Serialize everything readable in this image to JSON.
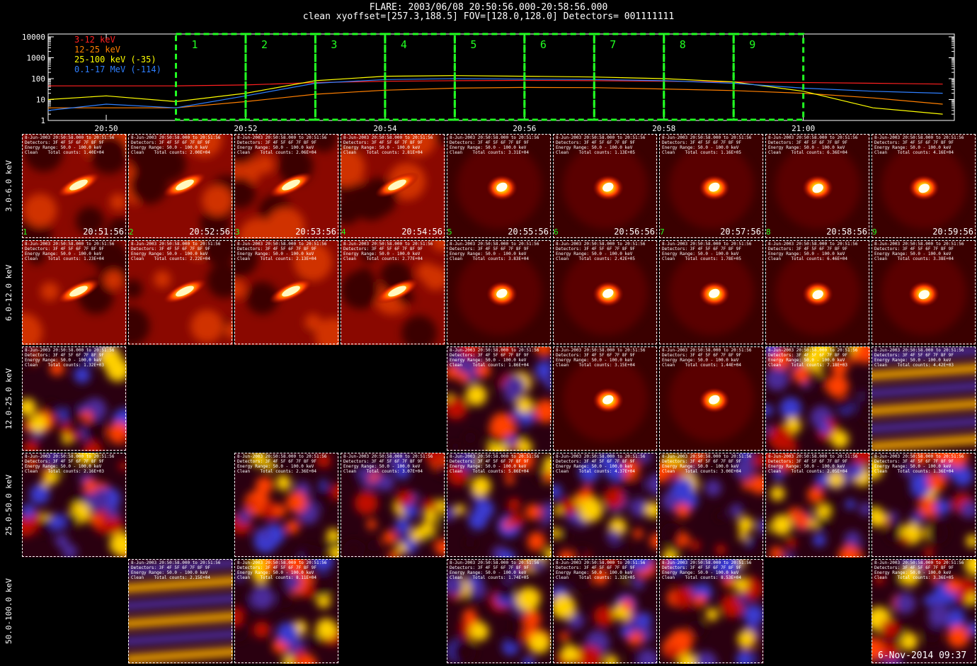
{
  "header": {
    "line1": "FLARE: 2003/06/08 20:50:56.000-20:58:56.000",
    "line2": "clean    xyoffset=[257.3,188.5]    FOV=[128.0,128.0]    Detectors= 001111111"
  },
  "chart_data": {
    "type": "line",
    "yscale": "log",
    "ylim": [
      1,
      10000
    ],
    "yticks": [
      "10000",
      "1000",
      "100",
      "10",
      "1"
    ],
    "xticks": [
      "20:50",
      "20:52",
      "20:54",
      "20:56",
      "20:58",
      "21:00"
    ],
    "legend": [
      {
        "name": "3-12 keV",
        "color": "#ff2020"
      },
      {
        "name": "12-25 keV",
        "color": "#ff7f00"
      },
      {
        "name": "25-100 keV (-35)",
        "color": "#ffff00"
      },
      {
        "name": "0.1-17 MeV (-114)",
        "color": "#2f7fff"
      }
    ],
    "series": [
      {
        "name": "3-12 keV",
        "color": "#ff2020",
        "x": [
          "20:49:10",
          "20:50:00",
          "20:51:00",
          "20:52:00",
          "20:53:00",
          "20:54:00",
          "20:55:00",
          "20:56:00",
          "20:57:00",
          "20:58:00",
          "20:59:00",
          "21:00:00",
          "21:01:00",
          "21:02:00"
        ],
        "values": [
          45,
          45,
          45,
          50,
          65,
          75,
          80,
          82,
          80,
          75,
          70,
          65,
          60,
          55
        ]
      },
      {
        "name": "12-25 keV",
        "color": "#ff7f00",
        "x": [
          "20:49:10",
          "20:50:00",
          "20:51:00",
          "20:52:00",
          "20:53:00",
          "20:54:00",
          "20:55:00",
          "20:56:00",
          "20:57:00",
          "20:58:00",
          "20:59:00",
          "21:00:00",
          "21:01:00",
          "21:02:00"
        ],
        "values": [
          4,
          4,
          4,
          8,
          18,
          28,
          35,
          38,
          37,
          32,
          27,
          20,
          12,
          6
        ]
      },
      {
        "name": "25-100 keV (-35)",
        "color": "#ffff00",
        "x": [
          "20:49:10",
          "20:50:00",
          "20:51:00",
          "20:52:00",
          "20:53:00",
          "20:54:00",
          "20:55:00",
          "20:56:00",
          "20:57:00",
          "20:58:00",
          "20:59:00",
          "21:00:00",
          "21:01:00",
          "21:02:00"
        ],
        "values": [
          10,
          15,
          8,
          20,
          80,
          130,
          140,
          130,
          120,
          100,
          70,
          25,
          4,
          2
        ]
      },
      {
        "name": "0.1-17 MeV (-114)",
        "color": "#2f7fff",
        "x": [
          "20:49:10",
          "20:50:00",
          "20:51:00",
          "20:52:00",
          "20:53:00",
          "20:54:00",
          "20:55:00",
          "20:56:00",
          "20:57:00",
          "20:58:00",
          "20:59:00",
          "21:00:00",
          "21:01:00",
          "21:02:00"
        ],
        "values": [
          3,
          6,
          4,
          15,
          60,
          90,
          100,
          95,
          90,
          80,
          60,
          35,
          25,
          20
        ]
      }
    ],
    "intervals": [
      "1",
      "2",
      "3",
      "4",
      "5",
      "6",
      "7",
      "8",
      "9"
    ]
  },
  "rows": [
    {
      "label": "3.0-6.0 keV"
    },
    {
      "label": "6.0-12.0 keV"
    },
    {
      "label": "12.0-25.0 keV"
    },
    {
      "label": "25.0-50.0 keV"
    },
    {
      "label": "50.0-100.0 keV"
    }
  ],
  "panel_text": {
    "date": "8-Jun-2003 20:50:58.000 to 20:51:56",
    "detectors": "Detectors: 3F 4F 5F 6F 7F 8F 9F",
    "energy": "Energy Range: 50.0 - 100.0 keV",
    "clean": "Clean    Total counts:"
  },
  "panels": [
    {
      "r": 0,
      "c": 0,
      "type": "flare",
      "idx": "1",
      "time": "20:51:56",
      "counts": "1.40E+04"
    },
    {
      "r": 0,
      "c": 1,
      "type": "flare",
      "idx": "2",
      "time": "20:52:56",
      "counts": "2.00E+04"
    },
    {
      "r": 0,
      "c": 2,
      "type": "flare",
      "idx": "3",
      "time": "20:53:56",
      "counts": "2.06E+04"
    },
    {
      "r": 0,
      "c": 3,
      "type": "flare",
      "idx": "4",
      "time": "20:54:56",
      "counts": "2.81E+04"
    },
    {
      "r": 0,
      "c": 4,
      "type": "source",
      "idx": "5",
      "time": "20:55:56",
      "counts": "3.31E+04"
    },
    {
      "r": 0,
      "c": 5,
      "type": "source",
      "idx": "6",
      "time": "20:56:56",
      "counts": "1.13E+05"
    },
    {
      "r": 0,
      "c": 6,
      "type": "source",
      "idx": "7",
      "time": "20:57:56",
      "counts": "1.16E+05"
    },
    {
      "r": 0,
      "c": 7,
      "type": "source",
      "idx": "8",
      "time": "20:58:56",
      "counts": "6.36E+04"
    },
    {
      "r": 0,
      "c": 8,
      "type": "source",
      "idx": "9",
      "time": "20:59:56",
      "counts": "4.16E+04"
    },
    {
      "r": 1,
      "c": 0,
      "type": "flare",
      "counts": "1.23E+04"
    },
    {
      "r": 1,
      "c": 1,
      "type": "flare",
      "counts": "2.22E+04"
    },
    {
      "r": 1,
      "c": 2,
      "type": "flare",
      "counts": "2.13E+04"
    },
    {
      "r": 1,
      "c": 3,
      "type": "flare",
      "counts": "2.77E+04"
    },
    {
      "r": 1,
      "c": 4,
      "type": "source",
      "counts": "3.83E+04"
    },
    {
      "r": 1,
      "c": 5,
      "type": "source",
      "counts": "2.42E+05"
    },
    {
      "r": 1,
      "c": 6,
      "type": "source",
      "counts": "1.78E+05"
    },
    {
      "r": 1,
      "c": 7,
      "type": "source",
      "counts": "6.46E+04"
    },
    {
      "r": 1,
      "c": 8,
      "type": "source",
      "counts": "3.38E+04"
    },
    {
      "r": 2,
      "c": 0,
      "type": "noise",
      "counts": "1.32E+03"
    },
    {
      "r": 2,
      "c": 4,
      "type": "noise",
      "counts": "1.86E+04"
    },
    {
      "r": 2,
      "c": 5,
      "type": "source",
      "counts": "3.15E+04"
    },
    {
      "r": 2,
      "c": 6,
      "type": "source",
      "counts": "1.44E+04"
    },
    {
      "r": 2,
      "c": 7,
      "type": "noise",
      "counts": "7.18E+03"
    },
    {
      "r": 2,
      "c": 8,
      "type": "stripes",
      "counts": "4.42E+03"
    },
    {
      "r": 3,
      "c": 0,
      "type": "noise",
      "counts": "2.16E+03"
    },
    {
      "r": 3,
      "c": 2,
      "type": "noise",
      "counts": "2.36E+04"
    },
    {
      "r": 3,
      "c": 3,
      "type": "noise",
      "counts": "3.07E+04"
    },
    {
      "r": 3,
      "c": 4,
      "type": "noise",
      "counts": "5.86E+04"
    },
    {
      "r": 3,
      "c": 5,
      "type": "noise",
      "counts": "4.37E+04"
    },
    {
      "r": 3,
      "c": 6,
      "type": "noise",
      "counts": "3.00E+04"
    },
    {
      "r": 3,
      "c": 7,
      "type": "noise",
      "counts": "2.05E+04"
    },
    {
      "r": 3,
      "c": 8,
      "type": "noise",
      "counts": "1.36E+04"
    },
    {
      "r": 4,
      "c": 1,
      "type": "stripes",
      "counts": "2.15E+04"
    },
    {
      "r": 4,
      "c": 2,
      "type": "noise",
      "counts": "8.11E+04"
    },
    {
      "r": 4,
      "c": 4,
      "type": "noise",
      "counts": "1.74E+05"
    },
    {
      "r": 4,
      "c": 5,
      "type": "noise",
      "counts": "1.32E+05"
    },
    {
      "r": 4,
      "c": 6,
      "type": "noise",
      "counts": "8.53E+04"
    },
    {
      "r": 4,
      "c": 8,
      "type": "noise",
      "counts": "3.36E+05"
    }
  ],
  "footer_stamp": "6-Nov-2014 09:37"
}
